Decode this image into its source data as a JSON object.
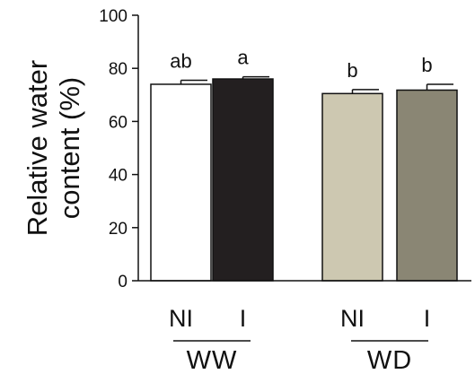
{
  "chart_data": {
    "type": "bar",
    "ylabel_lines": [
      "Relative water",
      "content (%)"
    ],
    "ylim": [
      0,
      100
    ],
    "yticks": [
      0,
      20,
      40,
      60,
      80,
      100
    ],
    "categories": [
      "NI",
      "I",
      "NI",
      "I"
    ],
    "groups": [
      {
        "label": "WW",
        "members": [
          0,
          1
        ]
      },
      {
        "label": "WD",
        "members": [
          2,
          3
        ]
      }
    ],
    "values": [
      74,
      76,
      70.5,
      71.8
    ],
    "errors": [
      1.5,
      0.8,
      1.5,
      2.2
    ],
    "significance": [
      "ab",
      "a",
      "b",
      "b"
    ],
    "colors": [
      "#ffffff",
      "#231f20",
      "#cdc8b1",
      "#8a8674"
    ],
    "grid": false,
    "legend": "none"
  }
}
